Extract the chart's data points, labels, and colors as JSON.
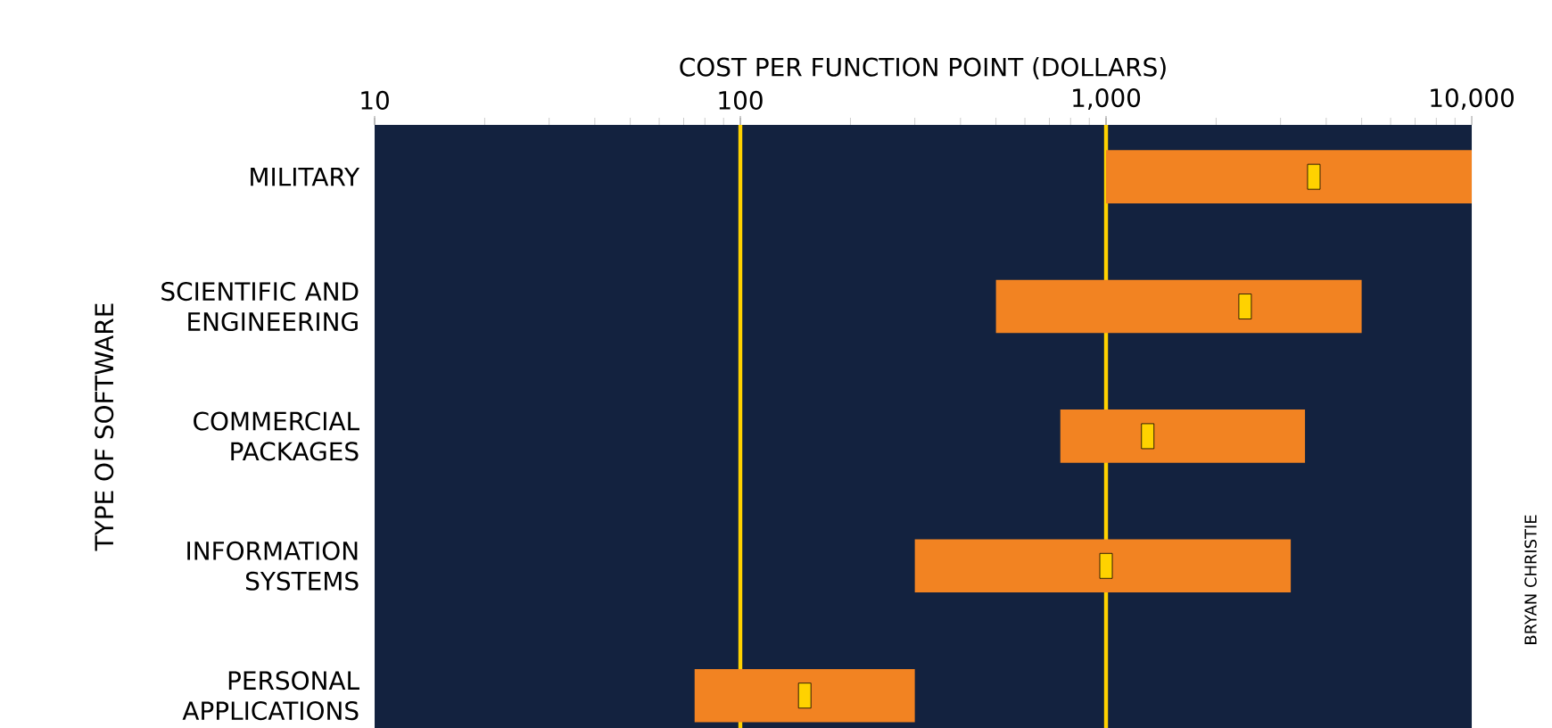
{
  "chart_data": {
    "type": "bar",
    "orientation": "horizontal",
    "log": "x",
    "xlabel": "COST PER FUNCTION POINT (DOLLARS)",
    "ylabel": "TYPE OF SOFTWARE",
    "categories": [
      "MILITARY",
      "SCIENTIFIC AND ENGINEERING",
      "COMMERCIAL PACKAGES",
      "INFORMATION SYSTEMS",
      "PERSONAL APPLICATIONS"
    ],
    "xlim": [
      10,
      10000
    ],
    "xticks": [
      10,
      100,
      {
        "value": 1000,
        "label": "1,000"
      },
      {
        "value": 10000,
        "label": "10,000"
      }
    ],
    "series": [
      {
        "type": "bar",
        "color": "#f28322",
        "base": [
          1000,
          500,
          750,
          300,
          75
        ],
        "values": [
          9000,
          4500,
          2750,
          2900,
          225
        ]
      },
      {
        "type": "scatter",
        "marker": "square",
        "color": "#ffd200",
        "x": [
          "MILITARY",
          "SCIENTIFIC AND ENGINEERING",
          "COMMERCIAL PACKAGES",
          "INFORMATION SYSTEMS",
          "PERSONAL APPLICATIONS"
        ],
        "values": [
          3700,
          2400,
          1300,
          1000,
          150
        ]
      }
    ],
    "ref_lines": [
      {
        "axis": "x",
        "value": 100,
        "color": "#ffd200"
      },
      {
        "axis": "x",
        "value": 1000,
        "color": "#ffd200"
      }
    ],
    "annotations": [
      "BRYAN CHRISTIE"
    ]
  }
}
